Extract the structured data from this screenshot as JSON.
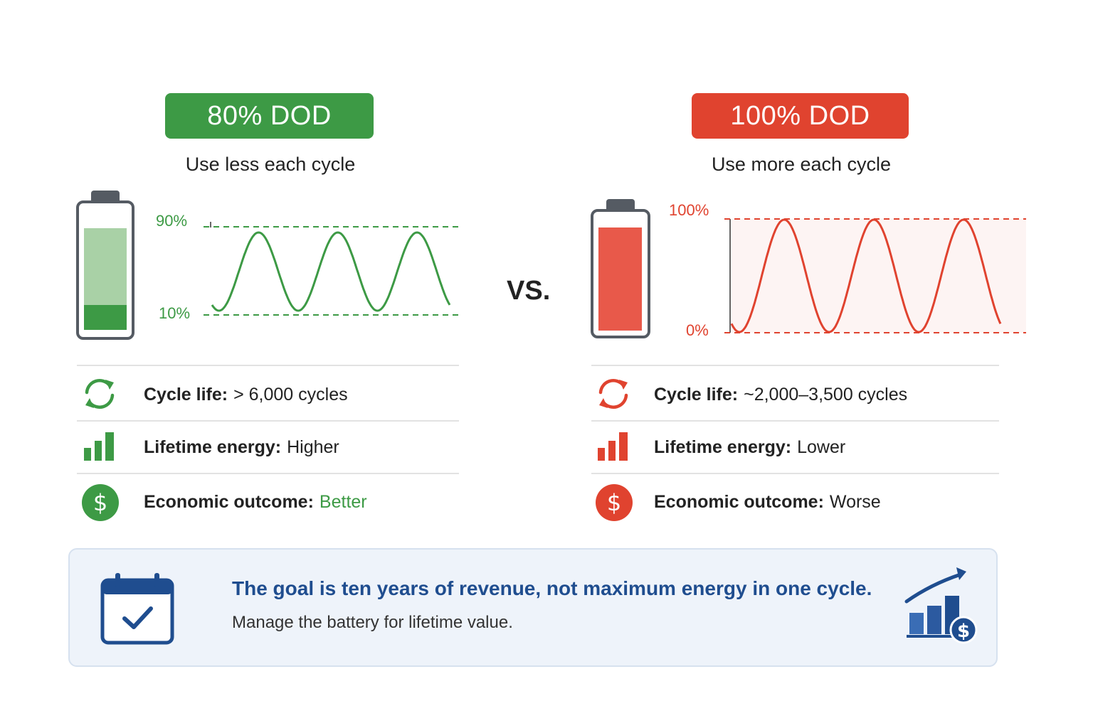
{
  "left": {
    "badge": "80% DOD",
    "subtitle": "Use less each cycle",
    "upper_label": "90%",
    "lower_label": "10%",
    "battery_fill": 0.8,
    "color": "#3d9a45",
    "stats": {
      "cycle_label": "Cycle life:",
      "cycle_value": "> 6,000 cycles",
      "energy_label": "Lifetime energy:",
      "energy_value": "Higher",
      "economic_label": "Economic outcome:",
      "economic_value": "Better"
    }
  },
  "right": {
    "badge": "100% DOD",
    "subtitle": "Use more each cycle",
    "upper_label": "100%",
    "lower_label": "0%",
    "battery_fill": 1.0,
    "color": "#e0432f",
    "stats": {
      "cycle_label": "Cycle life:",
      "cycle_value": "~2,000–3,500 cycles",
      "energy_label": "Lifetime energy:",
      "energy_value": "Lower",
      "economic_label": "Economic outcome:",
      "economic_value": "Worse"
    }
  },
  "vs": "VS.",
  "banner": {
    "title": "The goal is ten years of revenue, not maximum energy in one cycle.",
    "subtitle": "Manage the battery for lifetime value."
  },
  "icons": {
    "cycle": "cycle-arrows-icon",
    "energy": "bar-chart-icon",
    "economic": "dollar-icon",
    "calendar": "calendar-check-icon",
    "growth": "growth-chart-dollar-icon"
  }
}
